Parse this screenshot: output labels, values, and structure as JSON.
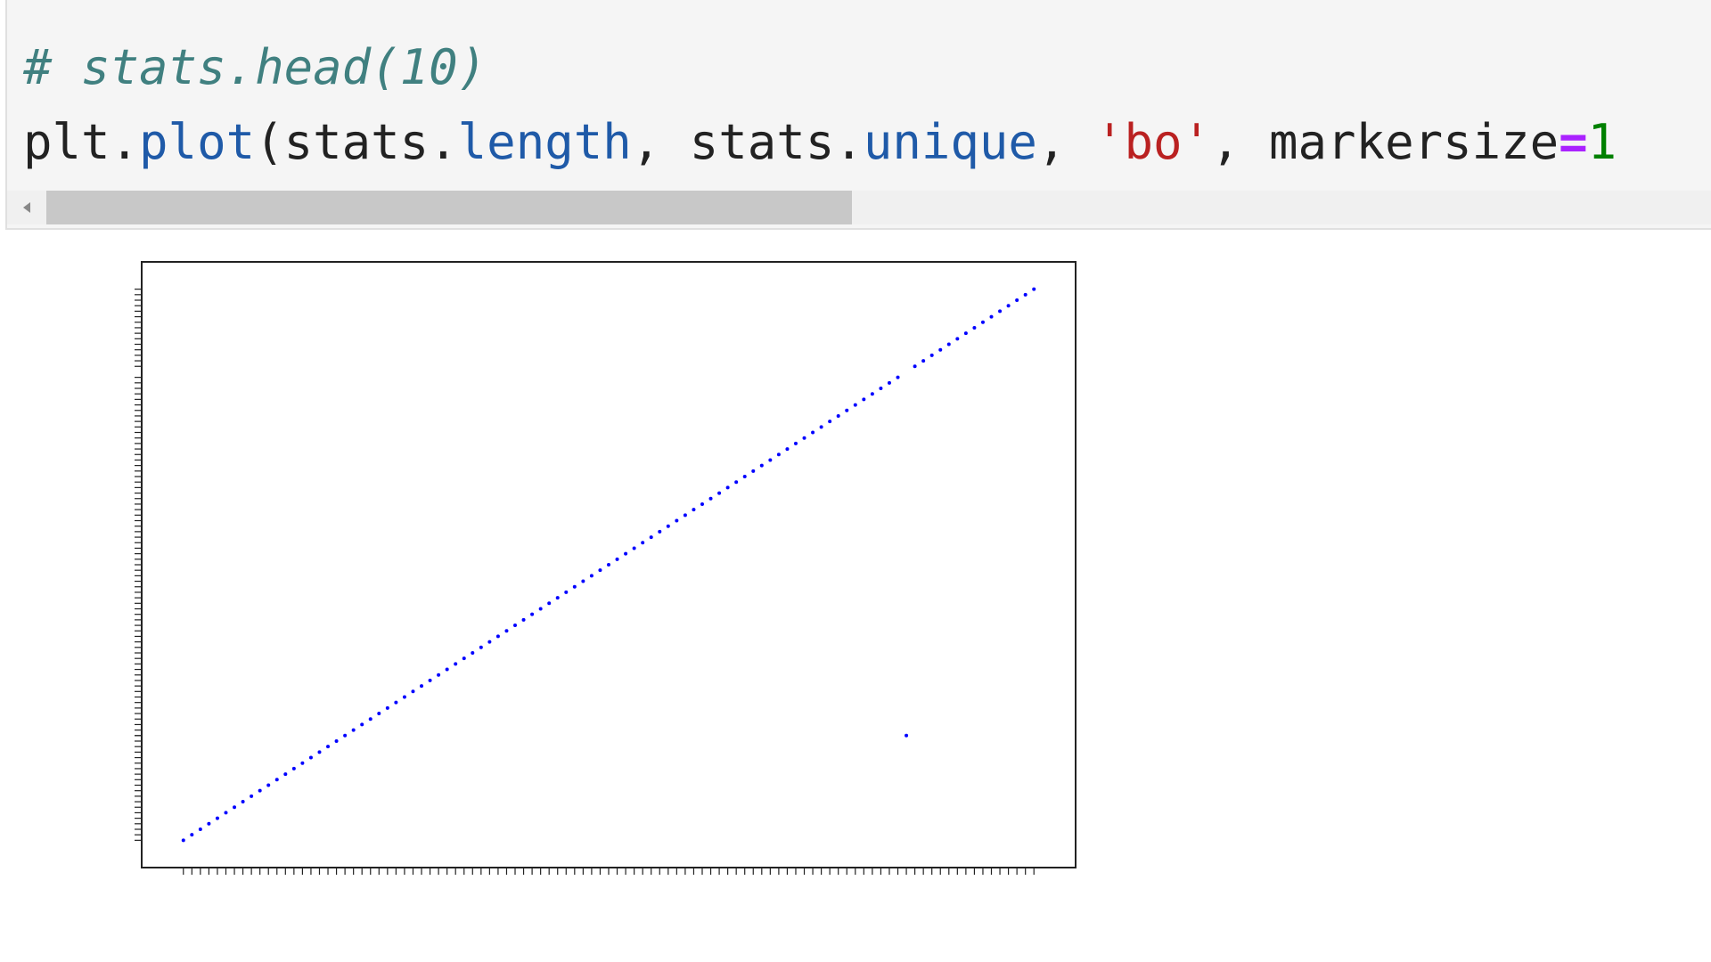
{
  "code": {
    "comment": "# stats.head(10)",
    "tokens": [
      "plt.",
      "plot",
      "(stats.",
      "length",
      ", stats.",
      "unique",
      ", ",
      "'bo'",
      ", markersize",
      "=",
      "1"
    ]
  },
  "chart_data": {
    "type": "scatter",
    "color": "#0000ff",
    "x": [
      0,
      1,
      2,
      3,
      4,
      5,
      6,
      7,
      8,
      9,
      10,
      11,
      12,
      13,
      14,
      15,
      16,
      17,
      18,
      19,
      20,
      21,
      22,
      23,
      24,
      25,
      26,
      27,
      28,
      29,
      30,
      31,
      32,
      33,
      34,
      35,
      36,
      37,
      38,
      39,
      40,
      41,
      42,
      43,
      44,
      45,
      46,
      47,
      48,
      49,
      50,
      51,
      52,
      53,
      54,
      55,
      56,
      57,
      58,
      59,
      60,
      61,
      62,
      63,
      64,
      65,
      66,
      67,
      68,
      69,
      70,
      71,
      72,
      73,
      74,
      75,
      76,
      77,
      78,
      79,
      80,
      81,
      82,
      83,
      84,
      85,
      86,
      87,
      88,
      89,
      90,
      91,
      92,
      93,
      94,
      95,
      96,
      97,
      98,
      99,
      100
    ],
    "y": [
      0,
      1,
      2,
      3,
      4,
      5,
      6,
      7,
      8,
      9,
      10,
      11,
      12,
      13,
      14,
      15,
      16,
      17,
      18,
      19,
      20,
      21,
      22,
      23,
      24,
      25,
      26,
      27,
      28,
      29,
      30,
      31,
      32,
      33,
      34,
      35,
      36,
      37,
      38,
      39,
      40,
      41,
      42,
      43,
      44,
      45,
      46,
      47,
      48,
      49,
      50,
      51,
      52,
      53,
      54,
      55,
      56,
      57,
      58,
      59,
      60,
      61,
      62,
      63,
      64,
      65,
      66,
      67,
      68,
      69,
      70,
      71,
      72,
      73,
      74,
      75,
      76,
      77,
      78,
      79,
      80,
      81,
      82,
      83,
      84,
      19,
      86,
      87,
      88,
      89,
      90,
      91,
      92,
      93,
      94,
      95,
      96,
      97,
      98,
      99,
      100
    ],
    "xlim": [
      -4.9,
      104.9
    ],
    "ylim": [
      -4.95,
      104.95
    ]
  }
}
